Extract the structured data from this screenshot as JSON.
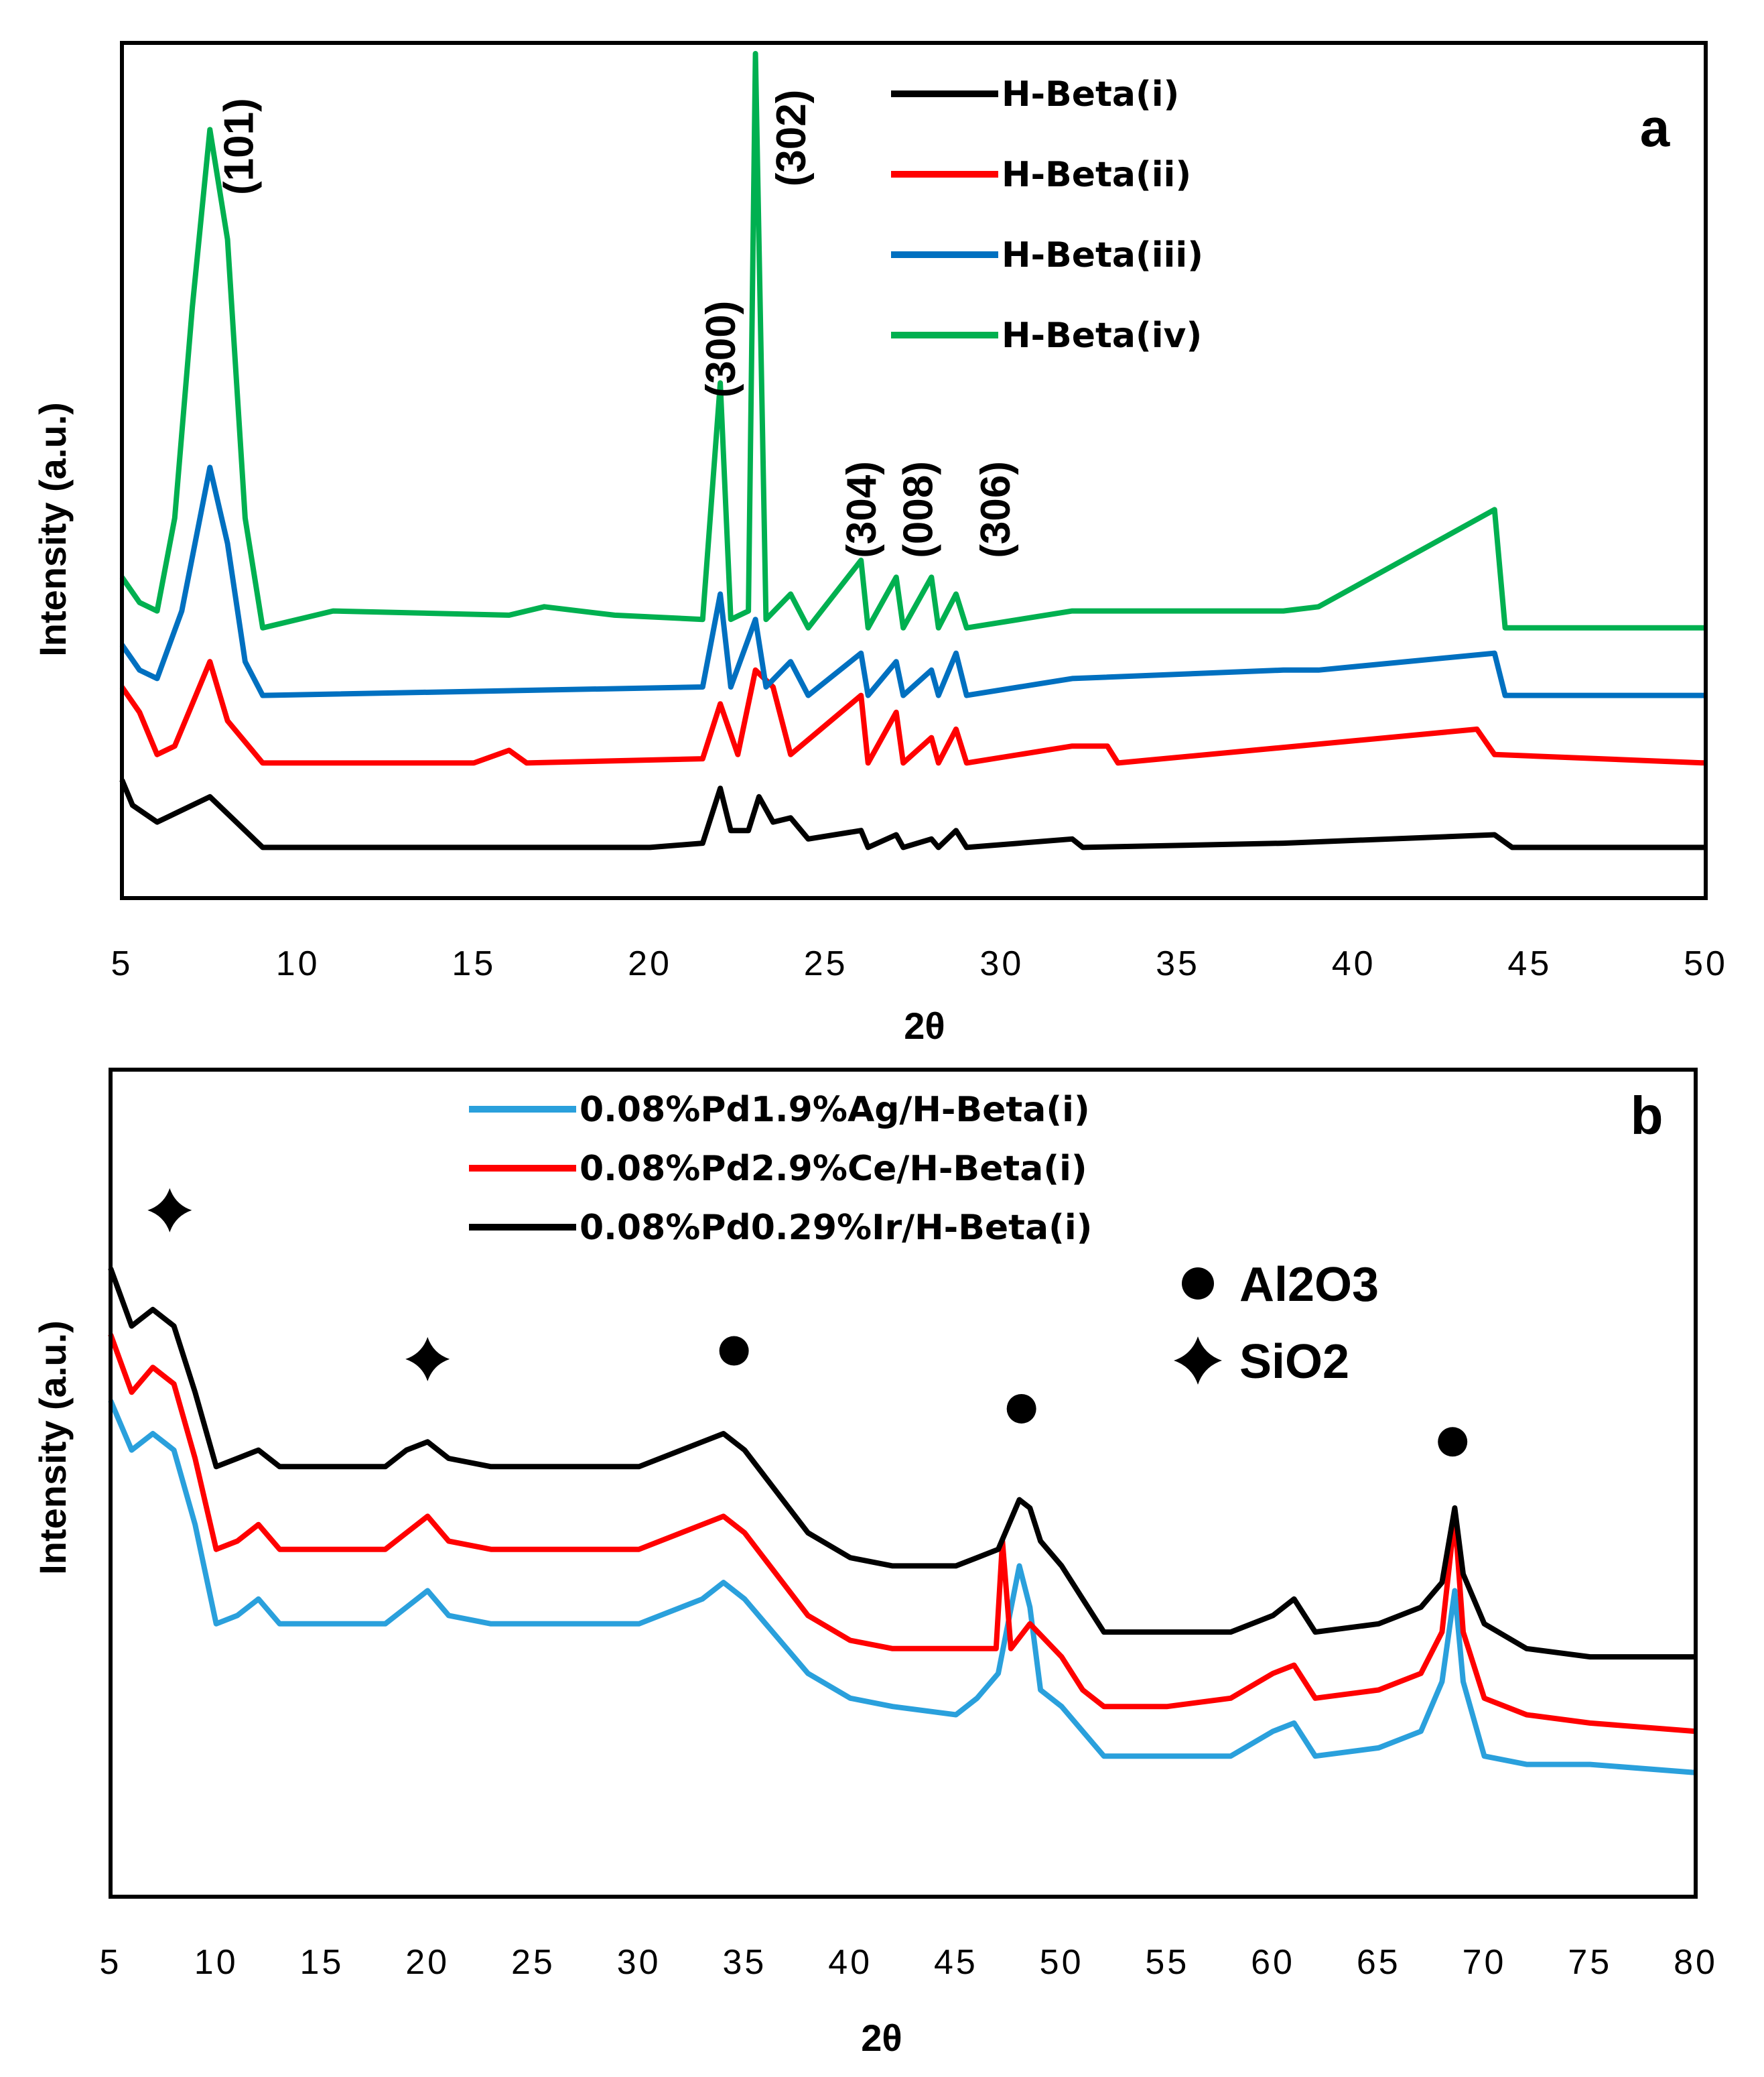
{
  "chart_data": [
    {
      "panel": "a",
      "type": "line",
      "title": "",
      "xlabel": "2θ",
      "ylabel": "Intensity (a.u.)",
      "xlim": [
        5,
        50
      ],
      "xticks": [
        5,
        10,
        15,
        20,
        25,
        30,
        35,
        40,
        45,
        50
      ],
      "ylim": [
        0,
        100
      ],
      "legend_position": "top-center",
      "series": [
        {
          "name": "H-Beta(i)",
          "color": "#000000",
          "baseline": 6,
          "points": [
            [
              5,
              14
            ],
            [
              5.3,
              11
            ],
            [
              6,
              9
            ],
            [
              6.5,
              10
            ],
            [
              7.5,
              12
            ],
            [
              8,
              10
            ],
            [
              9,
              6
            ],
            [
              10,
              6
            ],
            [
              15,
              6
            ],
            [
              20,
              6
            ],
            [
              21.5,
              6.5
            ],
            [
              22,
              13
            ],
            [
              22.3,
              8
            ],
            [
              22.8,
              8
            ],
            [
              23.1,
              12
            ],
            [
              23.5,
              9
            ],
            [
              24,
              9.5
            ],
            [
              24.5,
              7
            ],
            [
              26,
              8
            ],
            [
              26.2,
              6
            ],
            [
              27,
              7.5
            ],
            [
              27.2,
              6
            ],
            [
              28,
              7
            ],
            [
              28.2,
              6
            ],
            [
              28.7,
              8
            ],
            [
              29,
              6
            ],
            [
              32,
              7
            ],
            [
              32.3,
              6
            ],
            [
              38,
              6.5
            ],
            [
              44,
              7.5
            ],
            [
              44.5,
              6
            ],
            [
              50,
              6
            ]
          ]
        },
        {
          "name": "H-Beta(ii)",
          "color": "#ff0000",
          "baseline": 16,
          "points": [
            [
              5,
              25
            ],
            [
              5.5,
              22
            ],
            [
              6,
              17
            ],
            [
              6.5,
              18
            ],
            [
              7,
              23
            ],
            [
              7.5,
              28
            ],
            [
              8,
              21
            ],
            [
              9,
              16
            ],
            [
              15,
              16
            ],
            [
              16,
              17.5
            ],
            [
              16.5,
              16
            ],
            [
              21.5,
              16.5
            ],
            [
              22,
              23
            ],
            [
              22.5,
              17
            ],
            [
              23,
              27
            ],
            [
              23.5,
              25
            ],
            [
              24,
              17
            ],
            [
              26,
              24
            ],
            [
              26.2,
              16
            ],
            [
              27,
              22
            ],
            [
              27.2,
              16
            ],
            [
              28,
              19
            ],
            [
              28.2,
              16
            ],
            [
              28.7,
              20
            ],
            [
              29,
              16
            ],
            [
              32,
              18
            ],
            [
              33,
              18
            ],
            [
              33.3,
              16
            ],
            [
              43.5,
              20
            ],
            [
              44,
              17
            ],
            [
              50,
              16
            ]
          ]
        },
        {
          "name": "H-Beta(iii)",
          "color": "#0070c0",
          "baseline": 24,
          "points": [
            [
              5,
              30
            ],
            [
              5.5,
              27
            ],
            [
              6,
              26
            ],
            [
              6.7,
              34
            ],
            [
              7.5,
              51
            ],
            [
              8,
              42
            ],
            [
              8.5,
              28
            ],
            [
              9,
              24
            ],
            [
              21.5,
              25
            ],
            [
              22,
              36
            ],
            [
              22.3,
              25
            ],
            [
              23,
              33
            ],
            [
              23.3,
              25
            ],
            [
              24,
              28
            ],
            [
              24.5,
              24
            ],
            [
              26,
              29
            ],
            [
              26.2,
              24
            ],
            [
              27,
              28
            ],
            [
              27.2,
              24
            ],
            [
              28,
              27
            ],
            [
              28.2,
              24
            ],
            [
              28.7,
              29
            ],
            [
              29,
              24
            ],
            [
              32,
              26
            ],
            [
              38,
              27
            ],
            [
              39,
              27
            ],
            [
              44,
              29
            ],
            [
              44.3,
              24
            ],
            [
              50,
              24
            ]
          ]
        },
        {
          "name": "H-Beta(iv)",
          "color": "#00b050",
          "baseline": 32,
          "points": [
            [
              5,
              38
            ],
            [
              5.5,
              35
            ],
            [
              6,
              34
            ],
            [
              6.5,
              45
            ],
            [
              7,
              70
            ],
            [
              7.5,
              91
            ],
            [
              8,
              78
            ],
            [
              8.5,
              45
            ],
            [
              9,
              32
            ],
            [
              11,
              34
            ],
            [
              16,
              33.5
            ],
            [
              17,
              34.5
            ],
            [
              19,
              33.5
            ],
            [
              21.5,
              33
            ],
            [
              22,
              61
            ],
            [
              22.3,
              33
            ],
            [
              22.8,
              34
            ],
            [
              23,
              100
            ],
            [
              23.3,
              33
            ],
            [
              24,
              36
            ],
            [
              24.5,
              32
            ],
            [
              26,
              40
            ],
            [
              26.2,
              32
            ],
            [
              27,
              38
            ],
            [
              27.2,
              32
            ],
            [
              28,
              38
            ],
            [
              28.2,
              32
            ],
            [
              28.7,
              36
            ],
            [
              29,
              32
            ],
            [
              32,
              34
            ],
            [
              38,
              34
            ],
            [
              39,
              34.5
            ],
            [
              44,
              46
            ],
            [
              44.3,
              32
            ],
            [
              50,
              32
            ]
          ]
        }
      ],
      "annotations": [
        {
          "text": "(101)",
          "x": 8.3,
          "y": 89
        },
        {
          "text": "(300)",
          "x": 22,
          "y": 65
        },
        {
          "text": "(302)",
          "x": 24,
          "y": 90
        },
        {
          "text": "(304)",
          "x": 26,
          "y": 46
        },
        {
          "text": "(008)",
          "x": 27.6,
          "y": 46
        },
        {
          "text": "(306)",
          "x": 29.8,
          "y": 46
        }
      ],
      "panel_label": "a"
    },
    {
      "panel": "b",
      "type": "line",
      "title": "",
      "xlabel": "2θ",
      "ylabel": "Intensity (a.u.)",
      "xlim": [
        5,
        80
      ],
      "xticks": [
        5,
        10,
        15,
        20,
        25,
        30,
        35,
        40,
        45,
        50,
        55,
        60,
        65,
        70,
        75,
        80
      ],
      "ylim": [
        0,
        100
      ],
      "legend_position": "top-left",
      "series": [
        {
          "name": "0.08%Pd1.9%Ag/H-Beta(i)",
          "color": "#2aa0dc",
          "points": [
            [
              5,
              60
            ],
            [
              6,
              54
            ],
            [
              7,
              56
            ],
            [
              8,
              54
            ],
            [
              9,
              45
            ],
            [
              10,
              33
            ],
            [
              11,
              34
            ],
            [
              12,
              36
            ],
            [
              13,
              33
            ],
            [
              15,
              33
            ],
            [
              18,
              33
            ],
            [
              19,
              35
            ],
            [
              20,
              37
            ],
            [
              21,
              34
            ],
            [
              23,
              33
            ],
            [
              30,
              33
            ],
            [
              33,
              36
            ],
            [
              34,
              38
            ],
            [
              35,
              36
            ],
            [
              38,
              27
            ],
            [
              40,
              24
            ],
            [
              42,
              23
            ],
            [
              45,
              22
            ],
            [
              46,
              24
            ],
            [
              47,
              27
            ],
            [
              48,
              40
            ],
            [
              48.5,
              35
            ],
            [
              49,
              25
            ],
            [
              50,
              23
            ],
            [
              51,
              20
            ],
            [
              52,
              17
            ],
            [
              55,
              17
            ],
            [
              58,
              17
            ],
            [
              60,
              20
            ],
            [
              61,
              21
            ],
            [
              62,
              17
            ],
            [
              65,
              18
            ],
            [
              67,
              20
            ],
            [
              68,
              26
            ],
            [
              68.6,
              37
            ],
            [
              69,
              26
            ],
            [
              70,
              17
            ],
            [
              72,
              16
            ],
            [
              75,
              16
            ],
            [
              80,
              15
            ]
          ]
        },
        {
          "name": "0.08%Pd2.9%Ce/H-Beta(i)",
          "color": "#ff0000",
          "points": [
            [
              5,
              68
            ],
            [
              6,
              61
            ],
            [
              7,
              64
            ],
            [
              8,
              62
            ],
            [
              9,
              53
            ],
            [
              10,
              42
            ],
            [
              11,
              43
            ],
            [
              12,
              45
            ],
            [
              13,
              42
            ],
            [
              15,
              42
            ],
            [
              18,
              42
            ],
            [
              19,
              44
            ],
            [
              20,
              46
            ],
            [
              21,
              43
            ],
            [
              23,
              42
            ],
            [
              30,
              42
            ],
            [
              33,
              45
            ],
            [
              34,
              46
            ],
            [
              35,
              44
            ],
            [
              38,
              34
            ],
            [
              40,
              31
            ],
            [
              42,
              30
            ],
            [
              45,
              30
            ],
            [
              46.9,
              30
            ],
            [
              47.2,
              43
            ],
            [
              47.6,
              30
            ],
            [
              48.5,
              33
            ],
            [
              50,
              29
            ],
            [
              51,
              25
            ],
            [
              52,
              23
            ],
            [
              55,
              23
            ],
            [
              58,
              24
            ],
            [
              60,
              27
            ],
            [
              61,
              28
            ],
            [
              62,
              24
            ],
            [
              65,
              25
            ],
            [
              67,
              27
            ],
            [
              68,
              32
            ],
            [
              68.6,
              46
            ],
            [
              69,
              32
            ],
            [
              70,
              24
            ],
            [
              72,
              22
            ],
            [
              75,
              21
            ],
            [
              80,
              20
            ]
          ]
        },
        {
          "name": "0.08%Pd0.29%Ir/H-Beta(i)",
          "color": "#000000",
          "points": [
            [
              5,
              76
            ],
            [
              6,
              69
            ],
            [
              7,
              71
            ],
            [
              8,
              69
            ],
            [
              9,
              61
            ],
            [
              10,
              52
            ],
            [
              11,
              53
            ],
            [
              12,
              54
            ],
            [
              13,
              52
            ],
            [
              15,
              52
            ],
            [
              18,
              52
            ],
            [
              19,
              54
            ],
            [
              20,
              55
            ],
            [
              21,
              53
            ],
            [
              23,
              52
            ],
            [
              30,
              52
            ],
            [
              33,
              55
            ],
            [
              34,
              56
            ],
            [
              35,
              54
            ],
            [
              38,
              44
            ],
            [
              40,
              41
            ],
            [
              42,
              40
            ],
            [
              45,
              40
            ],
            [
              46,
              41
            ],
            [
              47,
              42
            ],
            [
              48,
              48
            ],
            [
              48.5,
              47
            ],
            [
              49,
              43
            ],
            [
              50,
              40
            ],
            [
              51,
              36
            ],
            [
              52,
              32
            ],
            [
              55,
              32
            ],
            [
              58,
              32
            ],
            [
              60,
              34
            ],
            [
              61,
              36
            ],
            [
              62,
              32
            ],
            [
              65,
              33
            ],
            [
              67,
              35
            ],
            [
              68,
              38
            ],
            [
              68.6,
              47
            ],
            [
              69,
              39
            ],
            [
              70,
              33
            ],
            [
              72,
              30
            ],
            [
              75,
              29
            ],
            [
              80,
              29
            ]
          ]
        }
      ],
      "markers": [
        {
          "symbol": "SiO2",
          "x": 7.8,
          "y": 83
        },
        {
          "symbol": "SiO2",
          "x": 20,
          "y": 65
        },
        {
          "symbol": "Al2O3",
          "x": 34.5,
          "y": 66
        },
        {
          "symbol": "Al2O3",
          "x": 48.1,
          "y": 59
        },
        {
          "symbol": "Al2O3",
          "x": 68.5,
          "y": 55
        }
      ],
      "phase_legend": [
        {
          "symbol": "Al2O3",
          "label": "Al2O3"
        },
        {
          "symbol": "SiO2",
          "label": "SiO2"
        }
      ],
      "panel_label": "b"
    }
  ]
}
